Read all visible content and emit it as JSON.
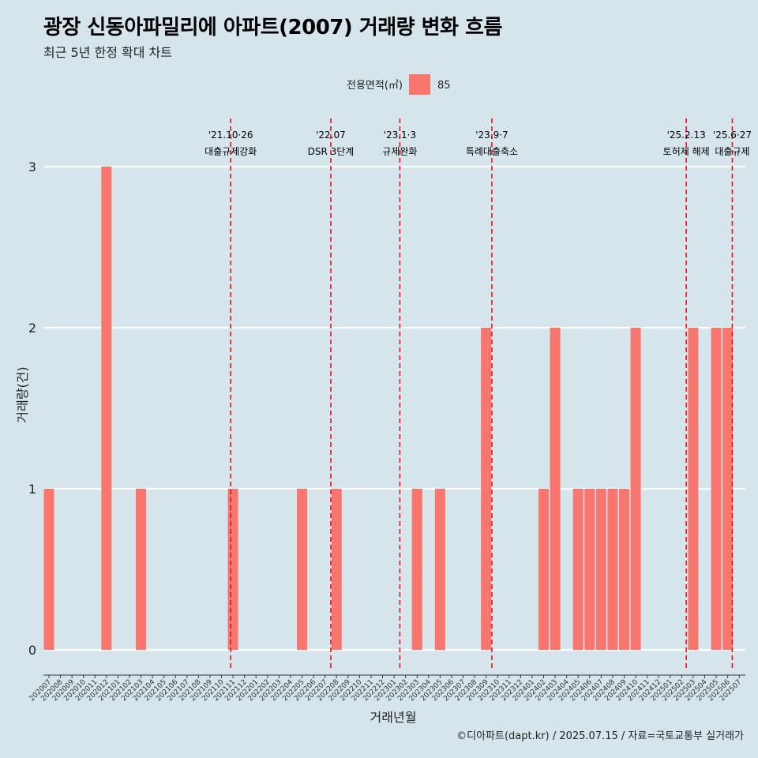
{
  "header": {
    "title": "광장 신동아파밀리에 아파트(2007) 거래량 변화 흐름",
    "subtitle": "최근 5년 한정 확대 차트"
  },
  "caption": "©디아파트(dapt.kr) / 2025.07.15 / 자료=국토교통부 실거래가",
  "legend": {
    "title": "전용면적(㎡)",
    "items": [
      {
        "label": "85",
        "color": "#f8766d"
      }
    ]
  },
  "chart_data": {
    "type": "bar",
    "xlabel": "거래년월",
    "ylabel": "거래량(건)",
    "ylim": [
      0,
      3
    ],
    "yticks": [
      0,
      1,
      2,
      3
    ],
    "bar_color": "#f8766d",
    "categories": [
      "202007",
      "202008",
      "202009",
      "202010",
      "202011",
      "202012",
      "202101",
      "202102",
      "202103",
      "202104",
      "202105",
      "202106",
      "202107",
      "202108",
      "202109",
      "202110",
      "202111",
      "202112",
      "202201",
      "202202",
      "202203",
      "202204",
      "202205",
      "202206",
      "202207",
      "202208",
      "202209",
      "202210",
      "202211",
      "202212",
      "202301",
      "202302",
      "202303",
      "202304",
      "202305",
      "202306",
      "202307",
      "202308",
      "202309",
      "202310",
      "202311",
      "202312",
      "202401",
      "202402",
      "202403",
      "202404",
      "202405",
      "202406",
      "202407",
      "202408",
      "202409",
      "202410",
      "202411",
      "202412",
      "202501",
      "202502",
      "202503",
      "202504",
      "202505",
      "202506",
      "202507"
    ],
    "values": [
      1,
      0,
      0,
      0,
      0,
      3,
      0,
      0,
      1,
      0,
      0,
      0,
      0,
      0,
      0,
      0,
      1,
      0,
      0,
      0,
      0,
      0,
      1,
      0,
      0,
      1,
      0,
      0,
      0,
      0,
      0,
      0,
      1,
      0,
      1,
      0,
      0,
      0,
      2,
      0,
      0,
      0,
      0,
      1,
      2,
      0,
      1,
      1,
      1,
      1,
      1,
      2,
      0,
      0,
      0,
      0,
      2,
      0,
      2,
      2,
      0
    ],
    "annotations": [
      {
        "date": "2021-10-26",
        "month_pos": 15.8,
        "line1": "'21.10·26",
        "line2": "대출규제강화"
      },
      {
        "date": "2022-07",
        "month_pos": 24.5,
        "line1": "'22.07",
        "line2": "DSR 3단계"
      },
      {
        "date": "2023-01-03",
        "month_pos": 30.5,
        "line1": "'23.1·3",
        "line2": "규제완화"
      },
      {
        "date": "2023-09-07",
        "month_pos": 38.5,
        "line1": "'23.9·7",
        "line2": "특례대출축소"
      },
      {
        "date": "2025-02-13",
        "month_pos": 55.4,
        "line1": "'25.2.13",
        "line2": "토허제 해제"
      },
      {
        "date": "2025-06-27",
        "month_pos": 59.4,
        "line1": "'25.6·27",
        "line2": "대출규제"
      }
    ]
  }
}
